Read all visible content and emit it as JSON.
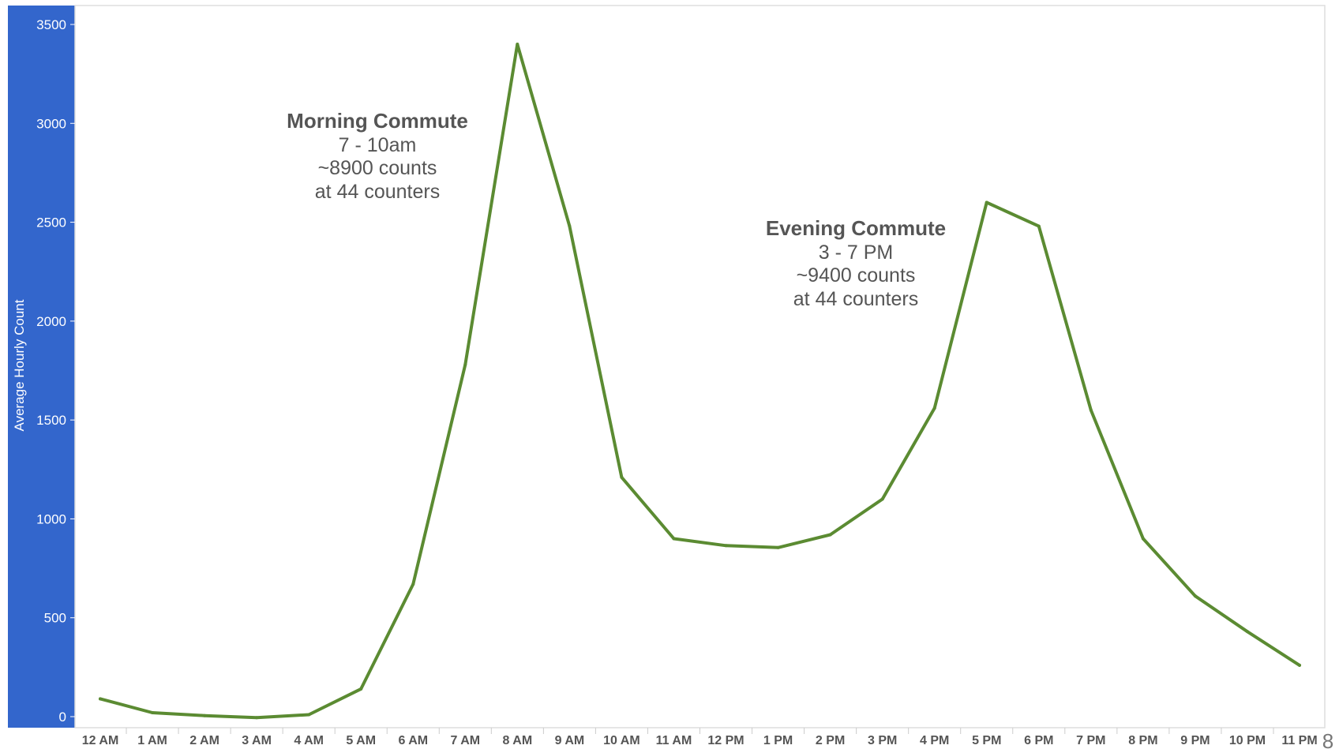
{
  "chart_data": {
    "type": "line",
    "title": "",
    "xlabel": "",
    "ylabel": "Average Hourly Count",
    "ylim": [
      0,
      3500
    ],
    "yticks": [
      0,
      500,
      1000,
      1500,
      2000,
      2500,
      3000,
      3500
    ],
    "grid": false,
    "categories": [
      "12 AM",
      "1 AM",
      "2 AM",
      "3 AM",
      "4 AM",
      "5 AM",
      "6 AM",
      "7 AM",
      "8 AM",
      "9 AM",
      "10 AM",
      "11 AM",
      "12 PM",
      "1 PM",
      "2 PM",
      "3 PM",
      "4 PM",
      "5 PM",
      "6 PM",
      "7 PM",
      "8 PM",
      "9 PM",
      "10 PM",
      "11 PM"
    ],
    "series": [
      {
        "values": [
          90,
          20,
          5,
          -5,
          10,
          140,
          670,
          1780,
          3400,
          2480,
          1210,
          900,
          865,
          855,
          920,
          1100,
          1560,
          2600,
          2480,
          1550,
          900,
          610,
          430,
          260
        ]
      }
    ],
    "annotations": [
      {
        "title": "Morning Commute",
        "lines": [
          "7 - 10am",
          "~8900 counts",
          "at 44 counters"
        ]
      },
      {
        "title": "Evening Commute",
        "lines": [
          "3 - 7 PM",
          "~9400 counts",
          "at 44 counters"
        ]
      }
    ],
    "corner_text": "8",
    "colors": {
      "line": "#5b8b32",
      "y_axis_band": "#3366cc",
      "axis_text": "#555555",
      "frame": "#dddddd"
    }
  }
}
